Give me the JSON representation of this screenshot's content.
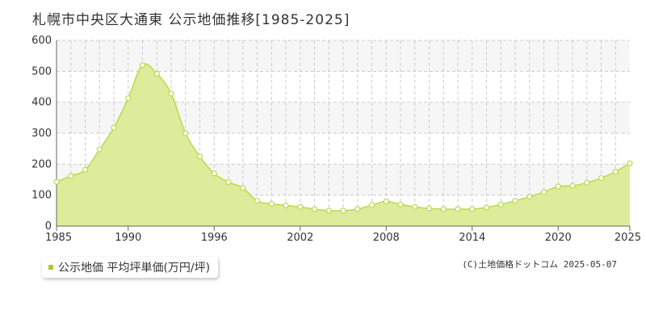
{
  "title": "札幌市中央区大通東 公示地価推移[1985-2025]",
  "legend": {
    "label": "公示地価 平均坪単価(万円/坪)"
  },
  "credit": "(C)土地価格ドットコム 2025-05-07",
  "colors": {
    "fill": "#dcec9a",
    "line": "#b9da4e",
    "marker_fill": "#ffffff",
    "marker_stroke": "#b9da4e",
    "grid": "#cccccc",
    "band": "#f6f6f6",
    "legend_swatch": "#a6cc36"
  },
  "chart_data": {
    "type": "area",
    "title": "札幌市中央区大通東 公示地価推移[1985-2025]",
    "xlabel": "",
    "ylabel": "",
    "xlim": [
      1985,
      2025
    ],
    "ylim": [
      0,
      600
    ],
    "x_ticks": [
      "1985",
      "1990",
      "1996",
      "2002",
      "2008",
      "2014",
      "2020",
      "2025"
    ],
    "y_ticks": [
      "0",
      "100",
      "200",
      "300",
      "400",
      "500",
      "600"
    ],
    "grid": true,
    "legend_position": "bottom-left",
    "series": [
      {
        "name": "公示地価 平均坪単価(万円/坪)",
        "x": [
          1985,
          1986,
          1987,
          1988,
          1989,
          1990,
          1991,
          1992,
          1993,
          1994,
          1995,
          1996,
          1997,
          1998,
          1999,
          2000,
          2001,
          2002,
          2003,
          2004,
          2005,
          2006,
          2007,
          2008,
          2009,
          2010,
          2011,
          2012,
          2013,
          2014,
          2015,
          2016,
          2017,
          2018,
          2019,
          2020,
          2021,
          2022,
          2023,
          2024,
          2025
        ],
        "values": [
          143,
          162,
          182,
          248,
          318,
          413,
          520,
          492,
          428,
          300,
          225,
          170,
          142,
          123,
          82,
          72,
          67,
          62,
          55,
          50,
          50,
          55,
          68,
          80,
          70,
          62,
          57,
          55,
          55,
          55,
          60,
          70,
          82,
          95,
          110,
          128,
          130,
          140,
          155,
          176,
          203
        ]
      }
    ]
  }
}
